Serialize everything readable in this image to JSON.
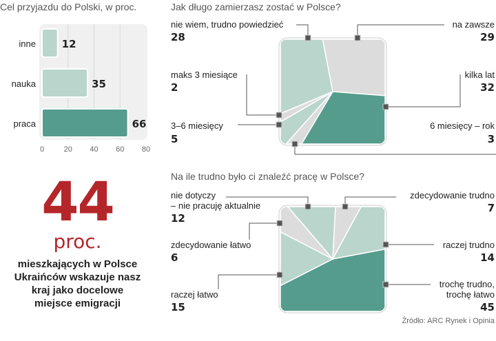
{
  "bar_chart": {
    "title": "Cel przyjazdu do Polski, w proc.",
    "chart_data": {
      "type": "bar",
      "orientation": "horizontal",
      "categories": [
        "inne",
        "nauka",
        "praca"
      ],
      "values": [
        12,
        35,
        66
      ],
      "xlim": [
        0,
        80
      ],
      "ticks": [
        "0",
        "20",
        "40",
        "60",
        "80"
      ],
      "grid": true,
      "colors": [
        "#b9d5cc",
        "#b9d5cc",
        "#559c8c"
      ]
    }
  },
  "highlight": {
    "number": "44",
    "unit": "proc.",
    "description": [
      "mieszkających w Polsce",
      "Ukraińców wskazuje nasz",
      "kraj jako docelowe",
      "miejsce emigracji"
    ]
  },
  "pie1": {
    "title": "Jak długo zamierzasz zostać w Polsce?",
    "chart_data": {
      "type": "pie",
      "shape": "rounded-square",
      "slices": [
        {
          "label": "na zawsze",
          "value": 29,
          "color": "#dcdcdc"
        },
        {
          "label": "kilka lat",
          "value": 32,
          "color": "#559c8c"
        },
        {
          "label": "6 miesięcy – rok",
          "value": 3,
          "color": "#dcdcdc"
        },
        {
          "label": "3–6 miesięcy",
          "value": 5,
          "color": "#b9d5cc"
        },
        {
          "label": "maks 3 miesiące",
          "value": 2,
          "color": "#dcdcdc"
        },
        {
          "label": "nie wiem, trudno powiedzieć",
          "value": 28,
          "color": "#b9d5cc"
        }
      ]
    }
  },
  "pie2": {
    "title": "Na ile trudno było ci znaleźć pracę w Polsce?",
    "chart_data": {
      "type": "pie",
      "shape": "rounded-square",
      "slices": [
        {
          "label": "zdecydowanie trudno",
          "value": 7,
          "color": "#dcdcdc"
        },
        {
          "label": "raczej trudno",
          "value": 14,
          "color": "#b9d5cc"
        },
        {
          "label": "trochę trudno, trochę łatwo",
          "value": 45,
          "color": "#559c8c"
        },
        {
          "label": "raczej łatwo",
          "value": 15,
          "color": "#b9d5cc"
        },
        {
          "label": "zdecydowanie łatwo",
          "value": 6,
          "color": "#dcdcdc"
        },
        {
          "label": "nie dotyczy – nie pracuję aktualnie",
          "value": 12,
          "color": "#b9d5cc"
        }
      ],
      "label_lines": {
        "nie_dotyczy": [
          "nie dotyczy",
          "– nie pracuję aktualnie"
        ],
        "troche": [
          "trochę trudno,",
          "trochę łatwo"
        ]
      }
    }
  },
  "source": "Źródło: ARC Rynek i Opinia"
}
